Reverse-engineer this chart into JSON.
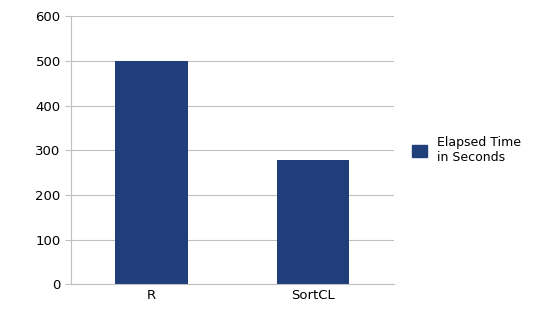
{
  "categories": [
    "R",
    "SortCL"
  ],
  "values": [
    500,
    277
  ],
  "bar_color": "#1F3E7A",
  "ylim": [
    0,
    600
  ],
  "yticks": [
    0,
    100,
    200,
    300,
    400,
    500,
    600
  ],
  "legend_label": "Elapsed Time\nin Seconds",
  "background_color": "#ffffff",
  "grid_color": "#c0c0c0",
  "bar_width": 0.45,
  "tick_fontsize": 9.5,
  "legend_fontsize": 9,
  "fig_width": 5.47,
  "fig_height": 3.23,
  "dpi": 100
}
